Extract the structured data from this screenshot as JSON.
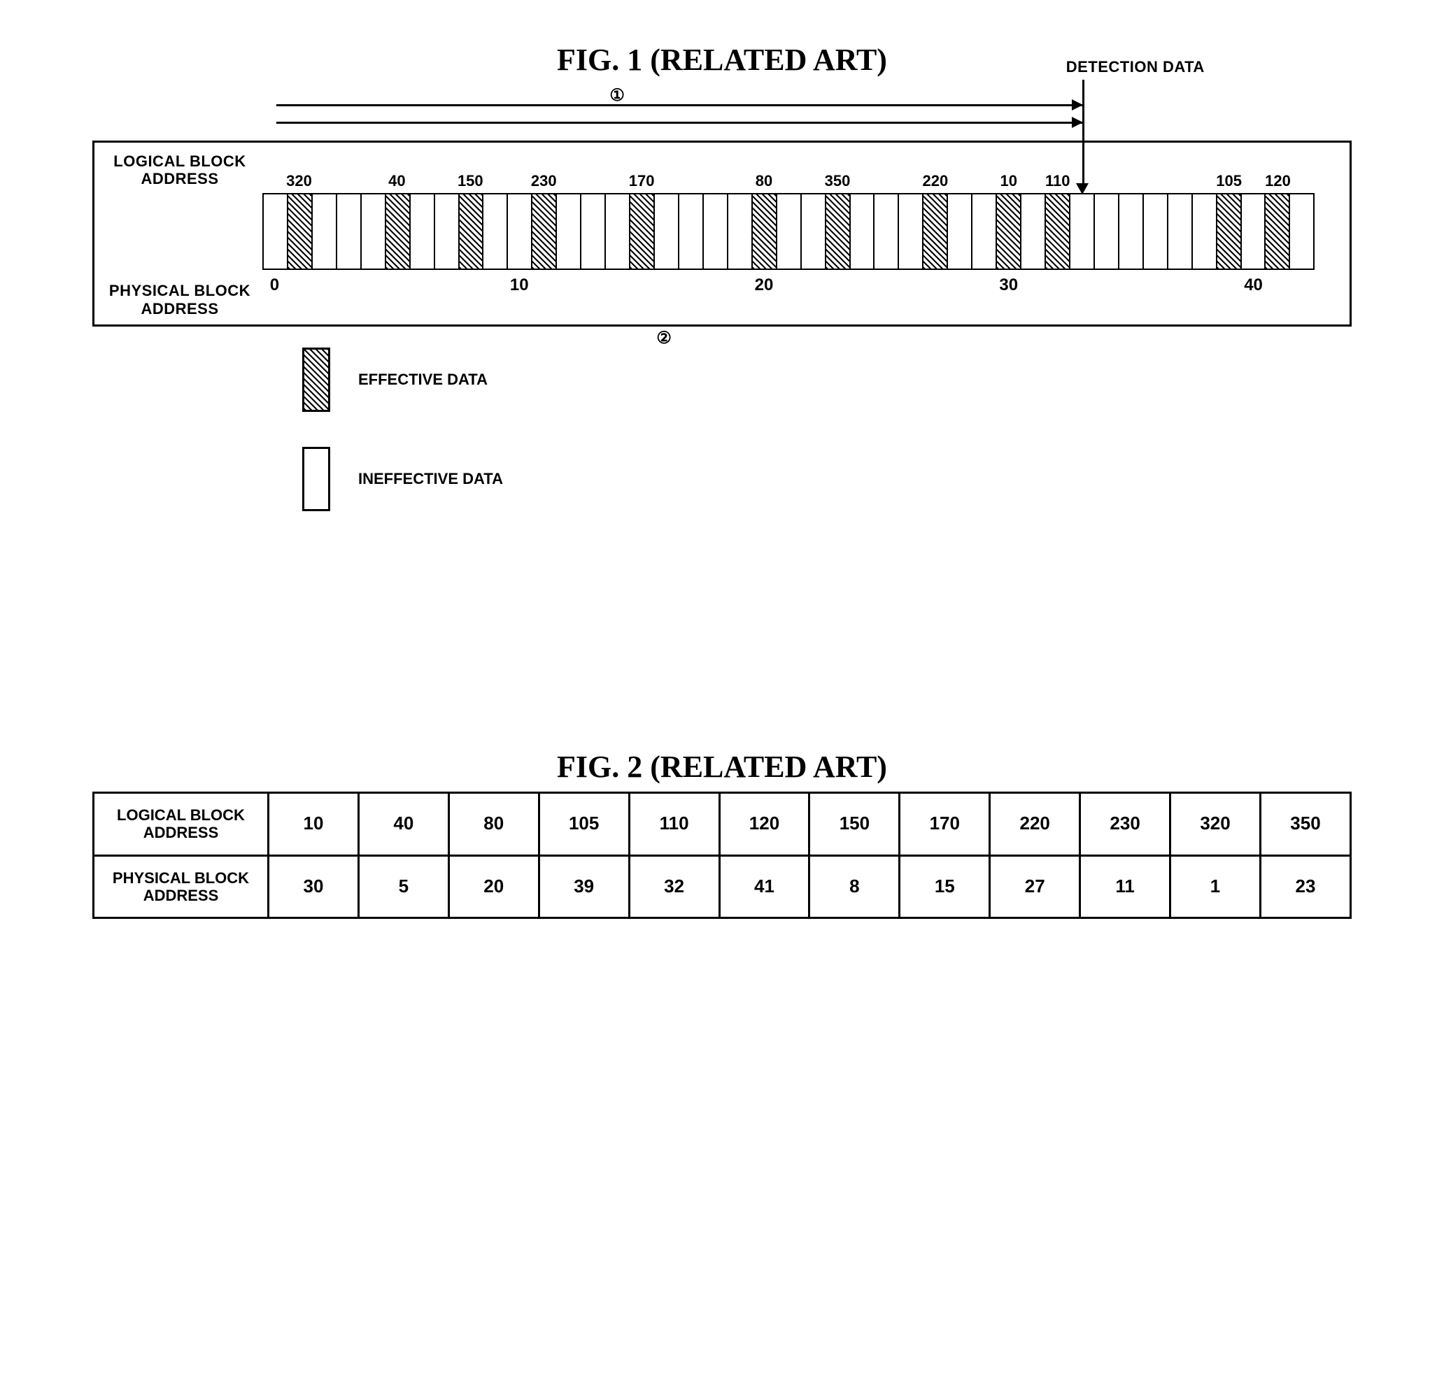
{
  "fig1": {
    "title": "FIG. 1 (RELATED ART)",
    "detection_label": "DETECTION DATA",
    "lba_label_line1": "LOGICAL BLOCK",
    "lba_label_line2": "ADDRESS",
    "pba_label_line1": "PHYSICAL BLOCK",
    "pba_label_line2": "ADDRESS",
    "circled1": "①",
    "circled2": "②",
    "n_cells": 43,
    "effective_physical_addresses": [
      1,
      5,
      8,
      11,
      15,
      20,
      23,
      27,
      30,
      32,
      39,
      41
    ],
    "lba_values": [
      {
        "addr": 1,
        "val": "320"
      },
      {
        "addr": 5,
        "val": "40"
      },
      {
        "addr": 8,
        "val": "150"
      },
      {
        "addr": 11,
        "val": "230"
      },
      {
        "addr": 15,
        "val": "170"
      },
      {
        "addr": 20,
        "val": "80"
      },
      {
        "addr": 23,
        "val": "350"
      },
      {
        "addr": 27,
        "val": "220"
      },
      {
        "addr": 30,
        "val": "10"
      },
      {
        "addr": 32,
        "val": "110"
      },
      {
        "addr": 39,
        "val": "105"
      },
      {
        "addr": 41,
        "val": "120"
      }
    ],
    "pba_ticks": [
      {
        "addr": 0,
        "val": "0"
      },
      {
        "addr": 10,
        "val": "10"
      },
      {
        "addr": 20,
        "val": "20"
      },
      {
        "addr": 30,
        "val": "30"
      },
      {
        "addr": 40,
        "val": "40"
      }
    ],
    "arrow1_end_addr": 33,
    "detection_arrow_addr": 33,
    "circled1_addr": 14,
    "circled2_addr": 16,
    "legend_effective": "EFFECTIVE DATA",
    "legend_ineffective": "INEFFECTIVE DATA",
    "colors": {
      "line": "#000000",
      "bg": "#ffffff"
    }
  },
  "fig2": {
    "title": "FIG. 2 (RELATED ART)",
    "row1_header_line1": "LOGICAL BLOCK",
    "row1_header_line2": "ADDRESS",
    "row2_header_line1": "PHYSICAL BLOCK",
    "row2_header_line2": "ADDRESS",
    "lba": [
      "10",
      "40",
      "80",
      "105",
      "110",
      "120",
      "150",
      "170",
      "220",
      "230",
      "320",
      "350"
    ],
    "pba": [
      "30",
      "5",
      "20",
      "39",
      "32",
      "41",
      "8",
      "15",
      "27",
      "11",
      "1",
      "23"
    ]
  }
}
